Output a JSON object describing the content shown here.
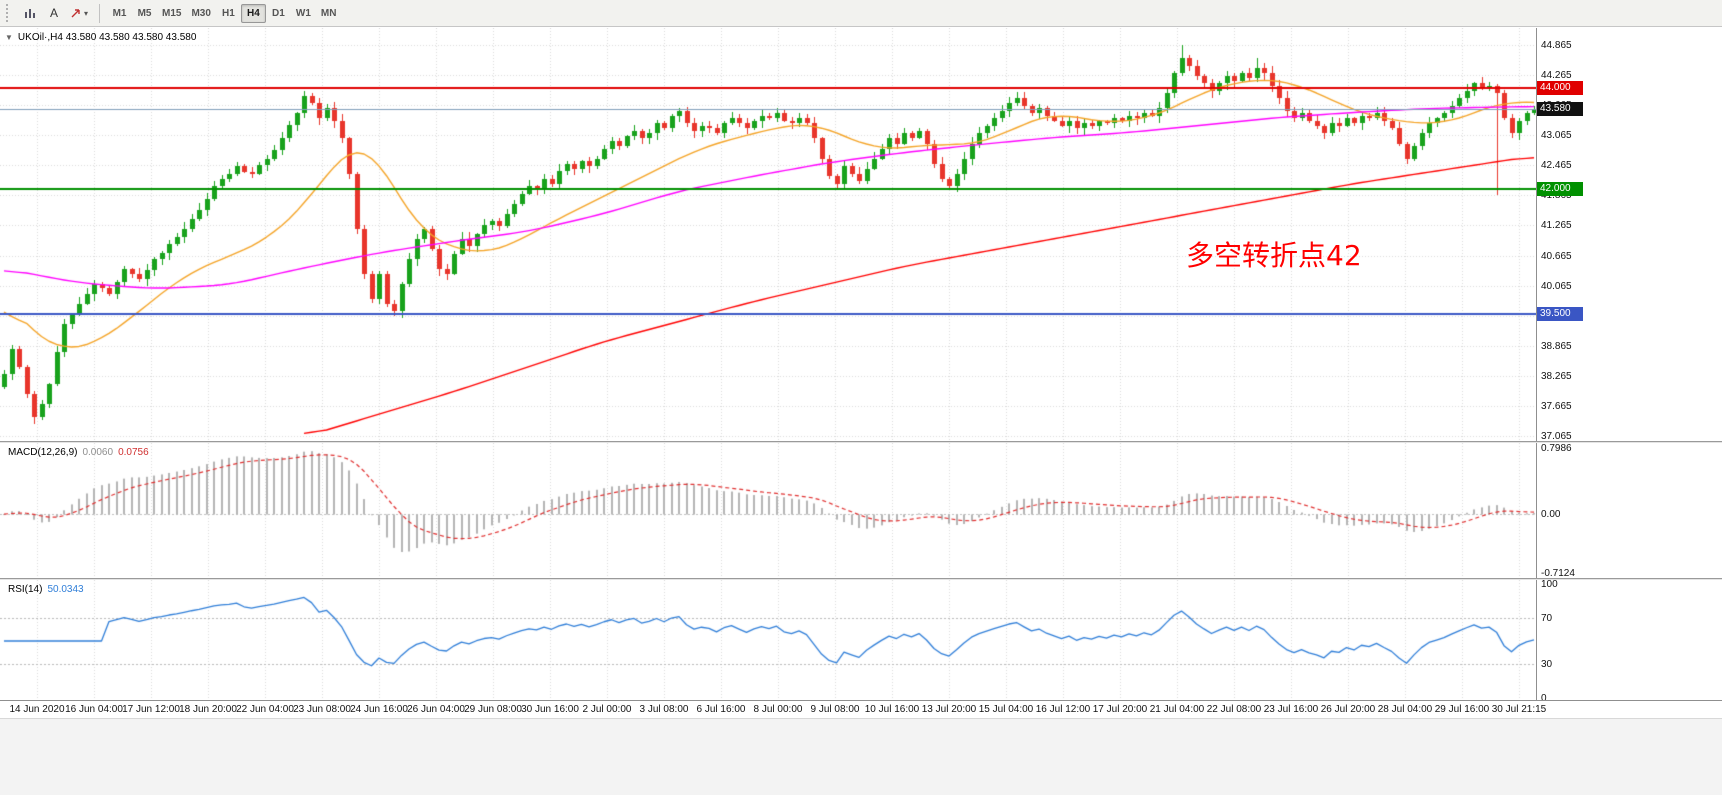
{
  "toolbar": {
    "tools": [
      {
        "name": "chart-tool"
      },
      {
        "name": "text-tool",
        "label": "A"
      },
      {
        "name": "arrows-tool",
        "caret": "▾"
      }
    ],
    "timeframes": [
      "M1",
      "M5",
      "M15",
      "M30",
      "H1",
      "H4",
      "D1",
      "W1",
      "MN"
    ],
    "active_timeframe": "H4"
  },
  "chart": {
    "collapse_icon": "▼",
    "symbol_header": "UKOil·,H4 43.580 43.580 43.580 43.580"
  },
  "price_scale": {
    "top": 44.865,
    "step": 0.6,
    "labels": [
      "44.865",
      "44.265",
      "43.665",
      "43.065",
      "42.465",
      "41.865",
      "41.265",
      "40.665",
      "40.065",
      "39.465",
      "38.865",
      "38.265",
      "37.665",
      "37.065"
    ]
  },
  "price_badges": [
    {
      "text": "44.000",
      "price": 44.0,
      "color": "#e00000"
    },
    {
      "text": "43.580",
      "price": 43.58,
      "color": "#111111"
    },
    {
      "text": "42.000",
      "price": 42.0,
      "color": "#009000"
    },
    {
      "text": "39.500",
      "price": 39.5,
      "color": "#3a56c4"
    }
  ],
  "hlines": [
    {
      "price": 44.0,
      "color": "#e00000",
      "width": 2
    },
    {
      "price": 43.58,
      "color": "#7f9db9",
      "width": 1
    },
    {
      "price": 42.0,
      "color": "#009000",
      "width": 2
    },
    {
      "price": 39.5,
      "color": "#3a56c4",
      "width": 2
    }
  ],
  "annotation": {
    "text": "多空转折点42",
    "color": "#ff0000"
  },
  "macd": {
    "label": "MACD(12,26,9)",
    "value_main": "0.0060",
    "value_signal": "0.0756",
    "scale_labels": [
      "0.7986",
      "0.00",
      "-0.7124"
    ],
    "max": 0.7986,
    "min": -0.7124,
    "histogram_color": "#b4b4b4",
    "signal_color": "#e03030"
  },
  "rsi": {
    "label": "RSI(14)",
    "value": "50.0343",
    "levels": [
      70,
      30
    ],
    "scale_labels": [
      "100",
      "70",
      "30",
      "0"
    ],
    "line_color": "#2f7ed8",
    "level_color": "#b8b8b8"
  },
  "time_axis": [
    "14 Jun 2020",
    "16 Jun 04:00",
    "17 Jun 12:00",
    "18 Jun 20:00",
    "22 Jun 04:00",
    "23 Jun 08:00",
    "24 Jun 16:00",
    "26 Jun 04:00",
    "29 Jun 08:00",
    "30 Jun 16:00",
    "2 Jul 00:00",
    "3 Jul 08:00",
    "6 Jul 16:00",
    "8 Jul 00:00",
    "9 Jul 08:00",
    "10 Jul 16:00",
    "13 Jul 20:00",
    "15 Jul 04:00",
    "16 Jul 12:00",
    "17 Jul 20:00",
    "21 Jul 04:00",
    "22 Jul 08:00",
    "23 Jul 16:00",
    "26 Jul 20:00",
    "28 Jul 04:00",
    "29 Jul 16:00",
    "30 Jul 21:15"
  ],
  "chart_data": {
    "type": "candlestick",
    "symbol": "UKOil",
    "timeframe": "H4",
    "last_price": 43.58,
    "price_range": [
      37.065,
      44.865
    ],
    "candles": 205,
    "up_color": "#18a21c",
    "down_color": "#e8352b",
    "close_anchors": [
      [
        0,
        38.3
      ],
      [
        1,
        38.8
      ],
      [
        2,
        38.45
      ],
      [
        3,
        37.9
      ],
      [
        4,
        37.45
      ],
      [
        5,
        37.7
      ],
      [
        6,
        38.1
      ],
      [
        7,
        38.75
      ],
      [
        8,
        39.3
      ],
      [
        10,
        39.7
      ],
      [
        12,
        40.1
      ],
      [
        14,
        39.9
      ],
      [
        16,
        40.4
      ],
      [
        18,
        40.2
      ],
      [
        20,
        40.6
      ],
      [
        22,
        40.9
      ],
      [
        24,
        41.2
      ],
      [
        25,
        41.4
      ],
      [
        27,
        41.8
      ],
      [
        29,
        42.2
      ],
      [
        31,
        42.45
      ],
      [
        33,
        42.3
      ],
      [
        35,
        42.6
      ],
      [
        37,
        43.0
      ],
      [
        39,
        43.5
      ],
      [
        40,
        43.85
      ],
      [
        41,
        43.7
      ],
      [
        42,
        43.4
      ],
      [
        43,
        43.6
      ],
      [
        45,
        43.0
      ],
      [
        46,
        42.3
      ],
      [
        47,
        41.2
      ],
      [
        48,
        40.3
      ],
      [
        49,
        39.8
      ],
      [
        50,
        40.3
      ],
      [
        51,
        39.7
      ],
      [
        52,
        39.55
      ],
      [
        53,
        40.1
      ],
      [
        54,
        40.6
      ],
      [
        55,
        41.0
      ],
      [
        56,
        41.2
      ],
      [
        57,
        40.8
      ],
      [
        58,
        40.4
      ],
      [
        59,
        40.3
      ],
      [
        60,
        40.7
      ],
      [
        61,
        41.0
      ],
      [
        62,
        40.85
      ],
      [
        63,
        41.1
      ],
      [
        65,
        41.35
      ],
      [
        66,
        41.25
      ],
      [
        67,
        41.5
      ],
      [
        68,
        41.7
      ],
      [
        69,
        41.9
      ],
      [
        70,
        42.05
      ],
      [
        71,
        42.0
      ],
      [
        72,
        42.2
      ],
      [
        73,
        42.1
      ],
      [
        74,
        42.35
      ],
      [
        75,
        42.5
      ],
      [
        76,
        42.4
      ],
      [
        77,
        42.55
      ],
      [
        78,
        42.45
      ],
      [
        79,
        42.6
      ],
      [
        80,
        42.8
      ],
      [
        81,
        42.95
      ],
      [
        82,
        42.85
      ],
      [
        83,
        43.05
      ],
      [
        84,
        43.15
      ],
      [
        85,
        43.0
      ],
      [
        86,
        43.1
      ],
      [
        87,
        43.3
      ],
      [
        88,
        43.2
      ],
      [
        89,
        43.45
      ],
      [
        90,
        43.55
      ],
      [
        91,
        43.3
      ],
      [
        92,
        43.15
      ],
      [
        93,
        43.25
      ],
      [
        95,
        43.1
      ],
      [
        96,
        43.3
      ],
      [
        97,
        43.4
      ],
      [
        98,
        43.3
      ],
      [
        99,
        43.2
      ],
      [
        100,
        43.35
      ],
      [
        101,
        43.45
      ],
      [
        102,
        43.4
      ],
      [
        103,
        43.5
      ],
      [
        104,
        43.35
      ],
      [
        105,
        43.3
      ],
      [
        106,
        43.4
      ],
      [
        107,
        43.3
      ],
      [
        108,
        43.0
      ],
      [
        109,
        42.6
      ],
      [
        110,
        42.25
      ],
      [
        111,
        42.1
      ],
      [
        112,
        42.45
      ],
      [
        113,
        42.3
      ],
      [
        114,
        42.15
      ],
      [
        115,
        42.4
      ],
      [
        116,
        42.6
      ],
      [
        117,
        42.8
      ],
      [
        118,
        43.0
      ],
      [
        119,
        42.9
      ],
      [
        120,
        43.1
      ],
      [
        121,
        43.0
      ],
      [
        122,
        43.15
      ],
      [
        123,
        42.9
      ],
      [
        124,
        42.5
      ],
      [
        125,
        42.2
      ],
      [
        126,
        42.05
      ],
      [
        127,
        42.3
      ],
      [
        128,
        42.6
      ],
      [
        129,
        42.9
      ],
      [
        130,
        43.1
      ],
      [
        131,
        43.25
      ],
      [
        132,
        43.4
      ],
      [
        133,
        43.55
      ],
      [
        134,
        43.7
      ],
      [
        135,
        43.8
      ],
      [
        136,
        43.65
      ],
      [
        137,
        43.5
      ],
      [
        138,
        43.6
      ],
      [
        139,
        43.45
      ],
      [
        140,
        43.35
      ],
      [
        141,
        43.25
      ],
      [
        142,
        43.35
      ],
      [
        143,
        43.2
      ],
      [
        144,
        43.3
      ],
      [
        145,
        43.25
      ],
      [
        146,
        43.35
      ],
      [
        147,
        43.3
      ],
      [
        148,
        43.4
      ],
      [
        149,
        43.35
      ],
      [
        150,
        43.45
      ],
      [
        151,
        43.4
      ],
      [
        152,
        43.5
      ],
      [
        153,
        43.45
      ],
      [
        154,
        43.6
      ],
      [
        155,
        43.9
      ],
      [
        156,
        44.3
      ],
      [
        157,
        44.6
      ],
      [
        158,
        44.45
      ],
      [
        159,
        44.25
      ],
      [
        160,
        44.1
      ],
      [
        161,
        43.95
      ],
      [
        162,
        44.1
      ],
      [
        163,
        44.25
      ],
      [
        164,
        44.15
      ],
      [
        165,
        44.3
      ],
      [
        166,
        44.2
      ],
      [
        167,
        44.4
      ],
      [
        168,
        44.3
      ],
      [
        169,
        44.05
      ],
      [
        170,
        43.8
      ],
      [
        171,
        43.55
      ],
      [
        172,
        43.4
      ],
      [
        173,
        43.5
      ],
      [
        174,
        43.35
      ],
      [
        175,
        43.25
      ],
      [
        176,
        43.1
      ],
      [
        177,
        43.3
      ],
      [
        178,
        43.25
      ],
      [
        179,
        43.4
      ],
      [
        180,
        43.3
      ],
      [
        181,
        43.45
      ],
      [
        182,
        43.4
      ],
      [
        183,
        43.5
      ],
      [
        184,
        43.35
      ],
      [
        185,
        43.2
      ],
      [
        186,
        42.9
      ],
      [
        187,
        42.6
      ],
      [
        188,
        42.85
      ],
      [
        189,
        43.1
      ],
      [
        190,
        43.3
      ],
      [
        191,
        43.4
      ],
      [
        192,
        43.5
      ],
      [
        193,
        43.65
      ],
      [
        194,
        43.8
      ],
      [
        195,
        43.95
      ],
      [
        196,
        44.1
      ],
      [
        197,
        44.0
      ],
      [
        198,
        44.05
      ],
      [
        199,
        43.9
      ],
      [
        200,
        43.4
      ],
      [
        201,
        43.1
      ],
      [
        202,
        43.35
      ],
      [
        203,
        43.5
      ],
      [
        204,
        43.58
      ]
    ],
    "wick_overrides": {
      "4": {
        "low": 37.3
      },
      "135": {
        "high": 43.92
      },
      "157": {
        "high": 44.86
      },
      "167": {
        "high": 44.6
      },
      "199": {
        "low": 41.87
      }
    },
    "moving_averages": [
      {
        "name": "MA-fast",
        "color": "#f4a428",
        "anchors": [
          [
            0,
            39.8
          ],
          [
            4,
            39.1
          ],
          [
            8,
            38.75
          ],
          [
            12,
            38.9
          ],
          [
            16,
            39.3
          ],
          [
            20,
            39.8
          ],
          [
            24,
            40.25
          ],
          [
            28,
            40.55
          ],
          [
            32,
            40.75
          ],
          [
            36,
            41.1
          ],
          [
            40,
            41.65
          ],
          [
            43,
            42.3
          ],
          [
            46,
            42.8
          ],
          [
            48,
            42.9
          ],
          [
            50,
            42.6
          ],
          [
            52,
            42.0
          ],
          [
            54,
            41.5
          ],
          [
            56,
            41.1
          ],
          [
            60,
            40.8
          ],
          [
            64,
            40.7
          ],
          [
            68,
            40.9
          ],
          [
            72,
            41.25
          ],
          [
            76,
            41.55
          ],
          [
            80,
            41.85
          ],
          [
            84,
            42.15
          ],
          [
            88,
            42.45
          ],
          [
            92,
            42.75
          ],
          [
            96,
            42.95
          ],
          [
            100,
            43.1
          ],
          [
            104,
            43.25
          ],
          [
            108,
            43.3
          ],
          [
            112,
            43.05
          ],
          [
            116,
            42.8
          ],
          [
            120,
            42.8
          ],
          [
            124,
            42.9
          ],
          [
            128,
            42.85
          ],
          [
            132,
            43.0
          ],
          [
            136,
            43.3
          ],
          [
            140,
            43.5
          ],
          [
            144,
            43.4
          ],
          [
            148,
            43.3
          ],
          [
            152,
            43.4
          ],
          [
            156,
            43.6
          ],
          [
            160,
            43.95
          ],
          [
            164,
            44.1
          ],
          [
            168,
            44.2
          ],
          [
            172,
            44.1
          ],
          [
            176,
            43.85
          ],
          [
            180,
            43.55
          ],
          [
            184,
            43.4
          ],
          [
            188,
            43.3
          ],
          [
            192,
            43.3
          ],
          [
            196,
            43.5
          ],
          [
            200,
            43.75
          ],
          [
            204,
            43.7
          ]
        ]
      },
      {
        "name": "MA-medium",
        "color": "#ff00ff",
        "anchors": [
          [
            0,
            40.4
          ],
          [
            10,
            40.12
          ],
          [
            20,
            40.0
          ],
          [
            30,
            40.08
          ],
          [
            40,
            40.42
          ],
          [
            50,
            40.72
          ],
          [
            60,
            40.95
          ],
          [
            70,
            41.15
          ],
          [
            80,
            41.5
          ],
          [
            90,
            41.95
          ],
          [
            100,
            42.25
          ],
          [
            110,
            42.52
          ],
          [
            120,
            42.72
          ],
          [
            130,
            42.88
          ],
          [
            140,
            43.02
          ],
          [
            150,
            43.12
          ],
          [
            160,
            43.27
          ],
          [
            170,
            43.42
          ],
          [
            180,
            43.52
          ],
          [
            190,
            43.6
          ],
          [
            204,
            43.64
          ]
        ]
      },
      {
        "name": "MA-slow",
        "color": "#ff0000",
        "anchors": [
          [
            40,
            37.05
          ],
          [
            60,
            37.95
          ],
          [
            80,
            38.95
          ],
          [
            100,
            39.75
          ],
          [
            120,
            40.45
          ],
          [
            140,
            41.0
          ],
          [
            160,
            41.55
          ],
          [
            180,
            42.1
          ],
          [
            204,
            42.65
          ]
        ]
      }
    ],
    "macd_params": [
      12,
      26,
      9
    ],
    "rsi_period": 14
  }
}
